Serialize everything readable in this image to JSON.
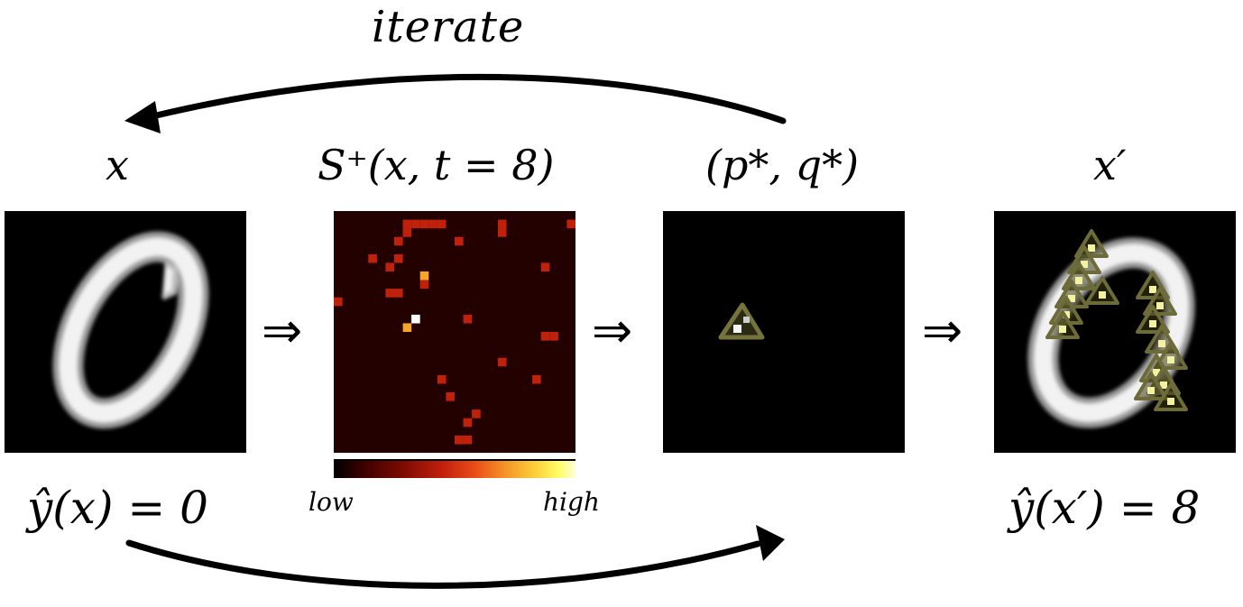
{
  "top_label": "iterate",
  "panels": [
    {
      "title": "x",
      "caption": "ŷ(x) = 0"
    },
    {
      "title": "S⁺(x, t = 8)",
      "caption": ""
    },
    {
      "title": "(p*, q*)",
      "caption": ""
    },
    {
      "title": "x′",
      "caption": "ŷ(x′) = 8"
    }
  ],
  "implies_symbol": "⇒",
  "colorbar": {
    "low_label": "low",
    "high_label": "high"
  },
  "colors": {
    "background": "#ffffff",
    "panel": "#000000",
    "heat_cell": "#c0210b",
    "heat_dark": "#2a0200",
    "heat_bright": "#f5a52a",
    "patch_outline": "#6d6b3a",
    "patch_fill": "#f4f2a0"
  },
  "icons": [
    "arrow-curved-left",
    "arrow-curved-right",
    "implies-arrow"
  ]
}
